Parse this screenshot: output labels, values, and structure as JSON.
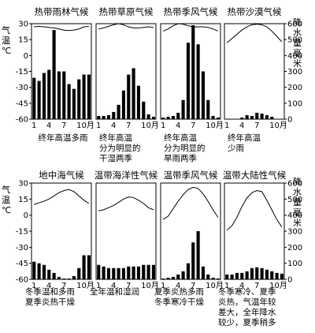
{
  "chart_data": {
    "type": "climate-chart-grid",
    "left_axis": {
      "label_chars": [
        "气",
        "温"
      ],
      "unit": "℃",
      "ticks": [
        30,
        15,
        0,
        -15,
        -30,
        -45,
        -60
      ],
      "range": [
        -60,
        30
      ]
    },
    "right_axis": {
      "label_chars": [
        "降",
        "水",
        "量",
        "毫",
        "米"
      ],
      "ticks": [
        600,
        500,
        400,
        300,
        200,
        100,
        0
      ],
      "range": [
        0,
        600
      ]
    },
    "month_tick_labels": [
      "1",
      "4",
      "7",
      "10月"
    ],
    "panels": [
      {
        "title": "热带雨林气候",
        "caption": [
          "终年高温多雨"
        ],
        "temperature": [
          27,
          27.5,
          27,
          26.5,
          26,
          25,
          24,
          23.5,
          24,
          25,
          27,
          27.5
        ],
        "precipitation": [
          260,
          240,
          290,
          310,
          560,
          300,
          300,
          220,
          190,
          250,
          280,
          280
        ]
      },
      {
        "title": "热带草原气候",
        "caption": [
          "终年高温",
          "分为明显的",
          "干湿两季"
        ],
        "temperature": [
          25,
          26,
          27.5,
          29,
          30,
          29,
          27,
          26,
          26,
          26.5,
          27,
          26.5
        ],
        "precipitation": [
          20,
          20,
          25,
          45,
          90,
          180,
          280,
          320,
          210,
          110,
          30,
          15
        ]
      },
      {
        "title": "热带季风气候",
        "caption": [
          "终年高温",
          "分为明显的",
          "旱雨两季"
        ],
        "temperature": [
          23,
          25,
          28,
          30,
          29.5,
          28,
          27,
          27,
          27,
          26.5,
          25,
          23
        ],
        "precipitation": [
          10,
          15,
          20,
          40,
          120,
          480,
          590,
          470,
          300,
          120,
          20,
          10
        ]
      },
      {
        "title": "热带沙漠气候",
        "caption": [
          "终年高温",
          "少雨"
        ],
        "temperature": [
          12,
          16,
          20,
          24,
          27,
          29,
          29.5,
          29,
          27,
          23,
          18,
          13
        ],
        "precipitation": [
          0,
          0,
          0,
          10,
          25,
          20,
          40,
          35,
          25,
          15,
          0,
          0
        ]
      },
      {
        "title": "地中海气候",
        "caption": [
          "冬季温和多雨",
          "夏季炎热干燥"
        ],
        "temperature": [
          10,
          11.5,
          13,
          15,
          18,
          21,
          23,
          24,
          22,
          18,
          14,
          11
        ],
        "precipitation": [
          110,
          100,
          90,
          60,
          40,
          15,
          5,
          5,
          20,
          70,
          150,
          150
        ]
      },
      {
        "title": "温带海洋性气候",
        "caption": [
          "全年温和湿润"
        ],
        "temperature": [
          4,
          5,
          7,
          9,
          12,
          15,
          17,
          16.5,
          14,
          11,
          7,
          5
        ],
        "precipitation": [
          90,
          80,
          70,
          70,
          70,
          70,
          80,
          80,
          80,
          90,
          90,
          90
        ]
      },
      {
        "title": "温带季风气候",
        "caption": [
          "夏季炎热多雨",
          "冬季寒冷干燥"
        ],
        "temperature": [
          -4,
          -1,
          6,
          13,
          19,
          24,
          26,
          25,
          20,
          13,
          5,
          -2
        ],
        "precipitation": [
          5,
          10,
          15,
          30,
          50,
          100,
          230,
          300,
          80,
          30,
          10,
          5
        ]
      },
      {
        "title": "温带大陆性气候",
        "caption": [
          "冬季寒冷、夏季",
          "炎热，气温年较",
          "差大，全年降水",
          "较少，夏季稍多"
        ],
        "temperature": [
          -14,
          -10,
          -2,
          8,
          16,
          21,
          23,
          22,
          14,
          5,
          -4,
          -11
        ],
        "precipitation": [
          30,
          30,
          40,
          40,
          50,
          70,
          75,
          70,
          60,
          50,
          40,
          35
        ]
      }
    ]
  }
}
